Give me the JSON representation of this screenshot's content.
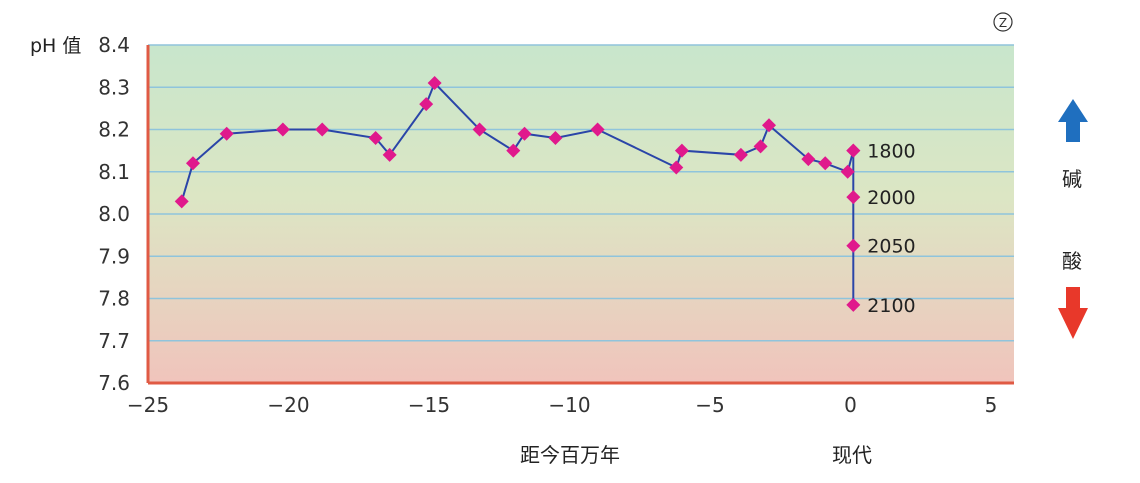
{
  "badge": "Z",
  "chart_data": {
    "type": "line",
    "ylabel": "pH 值",
    "xlabel": "距今百万年",
    "x_now_label": "现代",
    "xlim": [
      -25,
      6
    ],
    "ylim": [
      7.6,
      8.4
    ],
    "xticks": [
      "-25",
      "-20",
      "-15",
      "-10",
      "-5",
      "0",
      "5"
    ],
    "xtick_values": [
      -25,
      -20,
      -15,
      -10,
      -5,
      0,
      5
    ],
    "yticks": [
      "7.6",
      "7.7",
      "7.8",
      "7.9",
      "8.0",
      "8.1",
      "8.2",
      "8.3",
      "8.4"
    ],
    "ytick_values": [
      7.6,
      7.7,
      7.8,
      7.9,
      8.0,
      8.1,
      8.2,
      8.3,
      8.4
    ],
    "grid": true,
    "series": [
      {
        "color": "#2a45a8",
        "marker_color": "#e0198c",
        "x": [
          -23.8,
          -23.4,
          -22.2,
          -20.2,
          -18.8,
          -16.9,
          -16.4,
          -15.1,
          -14.8,
          -13.2,
          -12.0,
          -11.6,
          -10.5,
          -9.0,
          -6.2,
          -6.0,
          -3.9,
          -3.2,
          -2.9,
          -1.5,
          -0.9,
          -0.1,
          0.1
        ],
        "y": [
          8.03,
          8.12,
          8.19,
          8.2,
          8.2,
          8.18,
          8.14,
          8.26,
          8.31,
          8.2,
          8.15,
          8.19,
          8.18,
          8.2,
          8.11,
          8.15,
          8.14,
          8.16,
          8.21,
          8.13,
          8.12,
          8.1,
          8.15
        ]
      },
      {
        "color": "#2a45a8",
        "marker_color": "#e0198c",
        "x": [
          0.1,
          0.1,
          0.1,
          0.1
        ],
        "y": [
          8.15,
          8.04,
          7.925,
          7.785
        ]
      }
    ],
    "annotations": [
      "1800",
      "2000",
      "2050",
      "2100"
    ],
    "side_labels": {
      "alkaline": "碱",
      "alkaline_color": "#1f6fbf",
      "acid": "酸",
      "acid_color": "#e8382a"
    },
    "background_gradient": [
      "#c8e6cc",
      "#f0c4bc"
    ],
    "axis_color": "#e05a44"
  }
}
